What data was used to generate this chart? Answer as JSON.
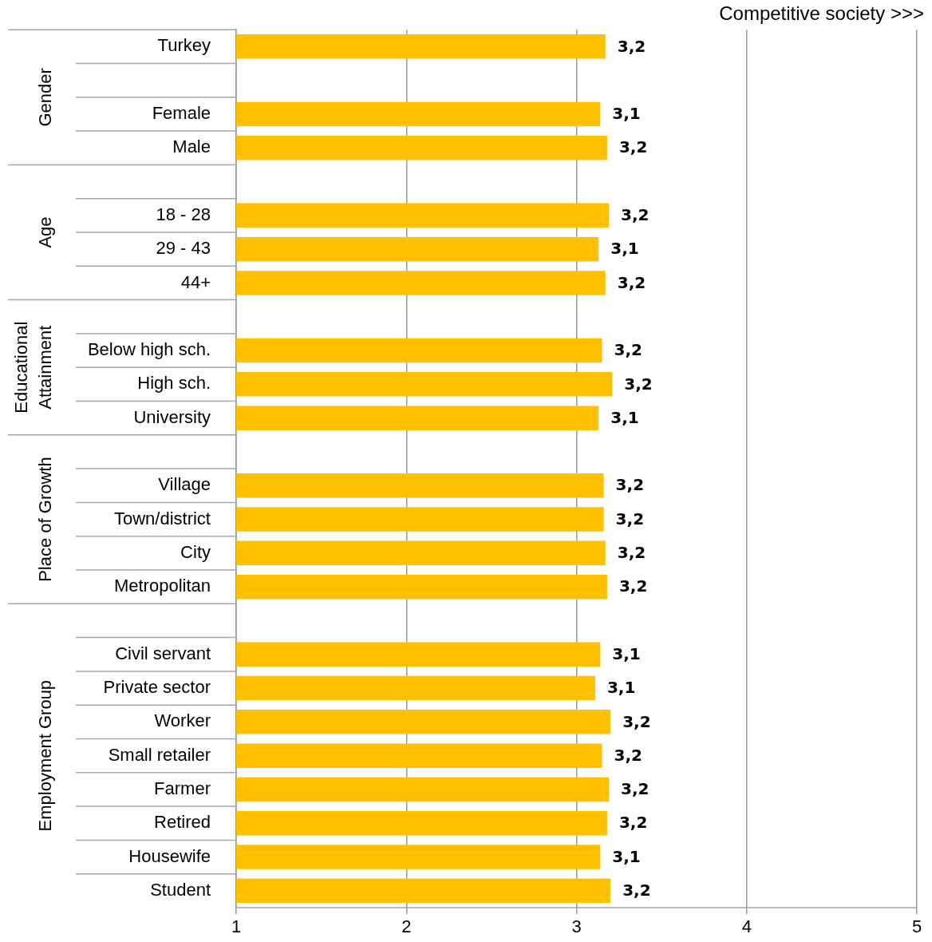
{
  "chart_data": {
    "type": "bar",
    "orientation": "horizontal",
    "xlabel": "Competitive society >>>",
    "categories": [
      "Turkey",
      null,
      "Female",
      "Male",
      null,
      "18 - 28",
      "29 - 43",
      "44+",
      null,
      "Below high sch.",
      "High sch.",
      "University",
      null,
      "Village",
      "Town/district",
      "City",
      "Metropolitan",
      null,
      "Civil servant",
      "Private sector",
      "Worker",
      "Small retailer",
      "Farmer",
      "Retired",
      "Housewife",
      "Student"
    ],
    "series": [
      {
        "color": "#ffc000",
        "values": [
          3.17,
          null,
          3.14,
          3.18,
          null,
          3.19,
          3.13,
          3.17,
          null,
          3.15,
          3.21,
          3.13,
          null,
          3.16,
          3.16,
          3.17,
          3.18,
          null,
          3.14,
          3.11,
          3.2,
          3.15,
          3.19,
          3.18,
          3.14,
          3.2
        ],
        "value_labels": [
          "3,2",
          null,
          "3,1",
          "3,2",
          null,
          "3,2",
          "3,1",
          "3,2",
          null,
          "3,2",
          "3,2",
          "3,1",
          null,
          "3,2",
          "3,2",
          "3,2",
          "3,2",
          null,
          "3,1",
          "3,1",
          "3,2",
          "3,2",
          "3,2",
          "3,2",
          "3,1",
          "3,2"
        ]
      }
    ],
    "xlim": [
      1,
      5
    ],
    "xticks": [
      1,
      2,
      3,
      4,
      5
    ],
    "grid": "x",
    "legend": false,
    "annotations": [
      "Gender",
      "Age",
      "Educational Attainment",
      "Place of Growth",
      "Employment Group"
    ]
  }
}
